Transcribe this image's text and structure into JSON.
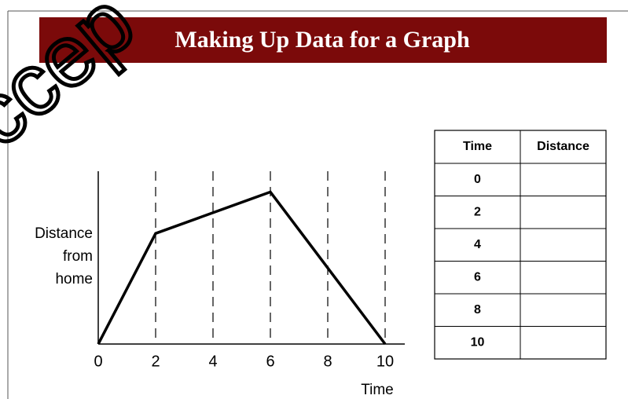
{
  "header": {
    "title": "Making Up Data for a Graph"
  },
  "watermark": "ccep",
  "chart_data": {
    "type": "line",
    "x_label": "Time",
    "y_label": [
      "Distance",
      "from",
      "home"
    ],
    "x": [
      0,
      2,
      6,
      10
    ],
    "values": [
      0,
      6.4,
      8.8,
      0
    ],
    "color": "#000000",
    "xlim": [
      0,
      10
    ],
    "xticks": [
      0,
      2,
      4,
      6,
      8,
      10
    ],
    "ylim": [
      0,
      10
    ],
    "grid": true
  },
  "table": {
    "columns": [
      "Time",
      "Distance"
    ],
    "rows": [
      [
        "0"
      ],
      [
        "2"
      ],
      [
        "4"
      ],
      [
        "6"
      ],
      [
        "8"
      ],
      [
        "10"
      ]
    ]
  }
}
